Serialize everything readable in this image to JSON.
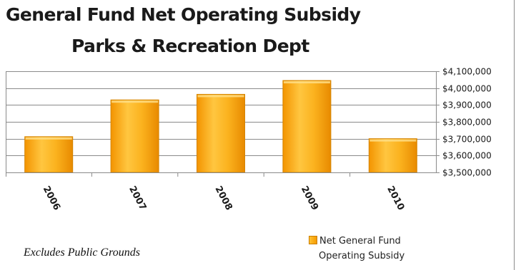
{
  "chart_data": {
    "type": "bar",
    "title": "General Fund Net Operating Subsidy",
    "subtitle": "Parks & Recreation Dept",
    "categories": [
      "2006",
      "2007",
      "2008",
      "2009",
      "2010"
    ],
    "series": [
      {
        "name": "Net General Fund Operating Subsidy",
        "values": [
          3712000,
          3930000,
          3963000,
          4045000,
          3700000
        ]
      }
    ],
    "ylim": [
      3500000,
      4100000
    ],
    "y_ticks": [
      {
        "value": 4100000,
        "label": "$4,100,000"
      },
      {
        "value": 4000000,
        "label": "$4,000,000"
      },
      {
        "value": 3900000,
        "label": "$3,900,000"
      },
      {
        "value": 3800000,
        "label": "$3,800,000"
      },
      {
        "value": 3700000,
        "label": "$3,700,000"
      },
      {
        "value": 3600000,
        "label": "$3,600,000"
      },
      {
        "value": 3500000,
        "label": "$3,500,000"
      }
    ],
    "y_axis_side": "right",
    "grid": true,
    "legend_position": "bottom-right",
    "bar_color": "#f5a000",
    "bar_highlight_color": "#ffcf55",
    "annotation": "Excludes Public Grounds",
    "legend_line1": "Net General Fund",
    "legend_line2": "Operating Subsidy"
  }
}
